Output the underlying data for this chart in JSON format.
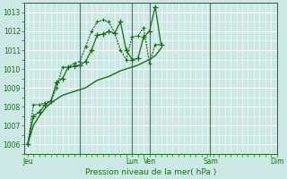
{
  "xlabel": "Pression niveau de la mer( hPa )",
  "bg_color": "#cce8e4",
  "grid_color": "#ffffff",
  "grid_minor_color": "#ddf0ee",
  "line_color": "#1a6b1a",
  "dark_line_color": "#2d5a1b",
  "ylim": [
    1005.5,
    1013.5
  ],
  "yticks": [
    1006,
    1007,
    1008,
    1009,
    1010,
    1011,
    1012,
    1013
  ],
  "day_labels": [
    "Jeu",
    "",
    "Lun",
    "Ven",
    "",
    "Sam",
    "",
    "Dim"
  ],
  "day_positions": [
    0.0,
    4.5,
    9.0,
    10.5,
    13.5,
    15.75,
    18.0,
    22.5
  ],
  "total_points": 24,
  "series1_x": [
    0,
    0.5,
    1.0,
    1.5,
    2.0,
    2.5,
    3.0,
    3.5,
    4.0,
    4.5,
    5.0,
    5.5,
    6.0,
    6.5,
    7.0,
    7.5,
    8.0,
    8.5,
    9.0,
    9.5,
    10.0,
    10.5,
    11.0,
    11.5
  ],
  "series1_y": [
    1006.0,
    1007.5,
    1007.7,
    1008.1,
    1008.3,
    1009.3,
    1009.5,
    1010.1,
    1010.15,
    1010.2,
    1010.4,
    1011.0,
    1011.8,
    1011.85,
    1012.0,
    1011.9,
    1012.5,
    1011.0,
    1010.5,
    1010.55,
    1011.7,
    1012.0,
    1013.3,
    1011.3
  ],
  "series2_x": [
    0,
    0.5,
    1.0,
    1.5,
    2.0,
    2.5,
    3.0,
    3.5,
    4.0,
    4.5,
    5.0,
    5.5,
    6.0,
    6.5,
    7.0,
    7.5,
    8.0,
    8.5,
    9.0,
    9.5,
    10.0,
    10.5,
    11.0,
    11.5
  ],
  "series2_y": [
    1006.0,
    1007.0,
    1007.5,
    1007.9,
    1008.2,
    1008.4,
    1008.6,
    1008.7,
    1008.8,
    1008.9,
    1009.0,
    1009.2,
    1009.4,
    1009.5,
    1009.6,
    1009.75,
    1009.9,
    1010.0,
    1010.1,
    1010.2,
    1010.35,
    1010.5,
    1010.7,
    1011.1
  ],
  "series3_x": [
    0,
    0.5,
    1.0,
    1.5,
    2.0,
    2.5,
    3.0,
    3.5,
    4.0,
    4.5,
    5.0,
    5.5,
    6.0,
    6.5,
    7.0,
    7.5,
    8.0,
    8.5,
    9.0,
    9.5,
    10.0,
    10.5,
    11.0,
    11.5
  ],
  "series3_y": [
    1006.0,
    1008.1,
    1008.1,
    1008.2,
    1008.3,
    1009.0,
    1010.1,
    1010.1,
    1010.3,
    1010.4,
    1011.2,
    1012.0,
    1012.5,
    1012.6,
    1012.5,
    1011.9,
    1011.0,
    1010.5,
    1011.7,
    1011.75,
    1012.2,
    1010.3,
    1011.3,
    1011.3
  ],
  "vline_positions": [
    4.5,
    9.0,
    10.5,
    15.75
  ],
  "xlabel_fontsize": 6.5,
  "ytick_fontsize": 5.5,
  "xtick_fontsize": 5.5
}
